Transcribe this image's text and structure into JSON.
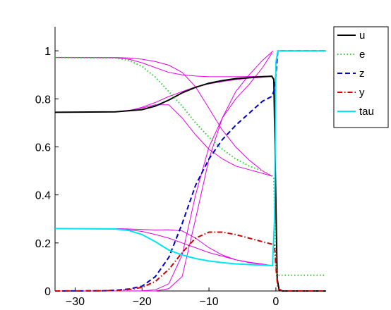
{
  "chart_data": {
    "type": "line",
    "title": "",
    "xlabel": "",
    "ylabel": "",
    "xlim": [
      -33,
      7.5
    ],
    "ylim": [
      0,
      1.1
    ],
    "x_ticks": [
      -30,
      -20,
      -10,
      0
    ],
    "x_tick_labels": [
      "−30",
      "−20",
      "−10",
      "0"
    ],
    "y_ticks": [
      0,
      0.2,
      0.4,
      0.6,
      0.8,
      1
    ],
    "y_tick_labels": [
      "0",
      "0.2",
      "0.4",
      "0.6",
      "0.8",
      "1"
    ],
    "grid": false,
    "legend_position": "top-right (outside plot area)",
    "series": [
      {
        "name": "u",
        "color": "#000000",
        "dash": "solid",
        "x": [
          -33,
          -24,
          -20,
          -18,
          -16,
          -14,
          -12,
          -10,
          -8,
          -6,
          -4,
          -2,
          -0.6,
          -0.3,
          0,
          0.2,
          0.5,
          1,
          7.5
        ],
        "y": [
          0.744,
          0.746,
          0.755,
          0.77,
          0.795,
          0.825,
          0.848,
          0.865,
          0.876,
          0.884,
          0.888,
          0.892,
          0.894,
          0.88,
          0.37,
          0.05,
          0.003,
          0,
          0
        ]
      },
      {
        "name": "e",
        "color": "#33cc33",
        "dash": "dotted",
        "x": [
          -33,
          -24,
          -22,
          -20,
          -18,
          -16,
          -14,
          -12,
          -10,
          -8,
          -6,
          -4,
          -2,
          -0.6,
          -0.3,
          0,
          0.3,
          1,
          7.5
        ],
        "y": [
          0.972,
          0.97,
          0.96,
          0.935,
          0.89,
          0.83,
          0.77,
          0.7,
          0.64,
          0.59,
          0.55,
          0.52,
          0.5,
          0.48,
          0.47,
          0.1,
          0.065,
          0.065,
          0.065
        ]
      },
      {
        "name": "z",
        "color": "#0000cc",
        "dash": "dashed",
        "x": [
          -33,
          -26,
          -24,
          -22,
          -20,
          -18,
          -16,
          -14,
          -12,
          -10,
          -8,
          -6,
          -4,
          -2,
          -0.6,
          -0.2,
          0,
          0.3,
          7.5
        ],
        "y": [
          0,
          0.001,
          0.003,
          0.008,
          0.02,
          0.06,
          0.14,
          0.28,
          0.44,
          0.55,
          0.63,
          0.69,
          0.74,
          0.79,
          0.81,
          0.84,
          0.9,
          1,
          1
        ]
      },
      {
        "name": "y",
        "color": "#cc0000",
        "dash": "dashdot",
        "x": [
          -33,
          -26,
          -24,
          -22,
          -20,
          -18,
          -16,
          -14,
          -12,
          -10,
          -8,
          -6,
          -4,
          -2,
          -0.6,
          -0.2,
          0,
          0.3,
          1,
          7.5
        ],
        "y": [
          0,
          0.001,
          0.002,
          0.006,
          0.015,
          0.04,
          0.09,
          0.16,
          0.22,
          0.245,
          0.245,
          0.235,
          0.22,
          0.205,
          0.195,
          0.19,
          0.1,
          0.01,
          0,
          0
        ]
      },
      {
        "name": "tau",
        "color": "#00e5ee",
        "dash": "solid",
        "x": [
          -33,
          -24,
          -22,
          -20,
          -18,
          -16,
          -14,
          -12,
          -10,
          -8,
          -6,
          -4,
          -2,
          -0.5,
          -0.2,
          0,
          0.3,
          7.5
        ],
        "y": [
          0.26,
          0.258,
          0.252,
          0.235,
          0.205,
          0.17,
          0.15,
          0.135,
          0.125,
          0.118,
          0.113,
          0.11,
          0.108,
          0.106,
          0.3,
          0.95,
          1,
          1
        ]
      }
    ],
    "reference_curves": [
      {
        "color": "#e600e6",
        "x": [
          -33,
          -24,
          -22,
          -20,
          -18,
          -16,
          -14,
          -12,
          -10,
          -8,
          -6,
          -4,
          -2,
          -0.6
        ],
        "y": [
          0.744,
          0.745,
          0.75,
          0.765,
          0.785,
          0.81,
          0.83,
          0.85,
          0.862,
          0.872,
          0.88,
          0.886,
          0.89,
          0.894
        ]
      },
      {
        "color": "#e600e6",
        "x": [
          -33,
          -24,
          -22,
          -20,
          -18,
          -16,
          -14,
          -12,
          -10,
          -8,
          -6,
          -4,
          -2,
          -0.6
        ],
        "y": [
          0.744,
          0.746,
          0.752,
          0.762,
          0.775,
          0.775,
          0.72,
          0.65,
          0.59,
          0.55,
          0.52,
          0.505,
          0.49,
          0.478
        ]
      },
      {
        "color": "#e600e6",
        "x": [
          -33,
          -24,
          -22,
          -20,
          -18,
          -16,
          -14,
          -12,
          -10,
          -8,
          -6,
          -4,
          -2,
          -0.6
        ],
        "y": [
          0.972,
          0.972,
          0.97,
          0.965,
          0.955,
          0.94,
          0.91,
          0.85,
          0.76,
          0.67,
          0.6,
          0.545,
          0.5,
          0.478
        ]
      },
      {
        "color": "#e600e6",
        "x": [
          -33,
          -24,
          -22,
          -20,
          -18,
          -16,
          -14,
          -12,
          -10,
          -8,
          -6,
          -4,
          -2,
          -0.6
        ],
        "y": [
          0.972,
          0.971,
          0.965,
          0.95,
          0.93,
          0.91,
          0.9,
          0.895,
          0.892,
          0.892,
          0.892,
          0.893,
          0.894,
          0.894
        ]
      },
      {
        "color": "#e600e6",
        "x": [
          -33,
          -24,
          -22,
          -20,
          -18,
          -16,
          -14,
          -12,
          -10,
          -8,
          -6,
          -4,
          -2,
          -0.4
        ],
        "y": [
          0,
          0,
          0,
          0,
          0,
          0.01,
          0.06,
          0.3,
          0.55,
          0.72,
          0.83,
          0.9,
          0.96,
          1
        ]
      },
      {
        "color": "#e600e6",
        "x": [
          -33,
          -24,
          -22,
          -20,
          -18,
          -16,
          -14,
          -12,
          -10,
          -8,
          -6,
          -4,
          -2,
          -0.6
        ],
        "y": [
          0,
          0,
          0,
          0.001,
          0.005,
          0.03,
          0.15,
          0.4,
          0.6,
          0.72,
          0.8,
          0.86,
          0.93,
          0.99
        ]
      },
      {
        "color": "#e600e6",
        "x": [
          -33,
          -24,
          -22,
          -20,
          -18,
          -16,
          -14,
          -12,
          -10,
          -8,
          -6,
          -4,
          -2,
          -0.6
        ],
        "y": [
          0.26,
          0.26,
          0.258,
          0.256,
          0.254,
          0.255,
          0.25,
          0.22,
          0.18,
          0.15,
          0.13,
          0.118,
          0.11,
          0.106
        ]
      },
      {
        "color": "#e600e6",
        "x": [
          -33,
          -24,
          -22,
          -20,
          -18,
          -16,
          -14,
          -12,
          -10,
          -8,
          -6,
          -4,
          -2,
          -0.6
        ],
        "y": [
          0.26,
          0.258,
          0.255,
          0.248,
          0.235,
          0.22,
          0.2,
          0.18,
          0.16,
          0.145,
          0.13,
          0.12,
          0.112,
          0.106
        ]
      }
    ]
  }
}
